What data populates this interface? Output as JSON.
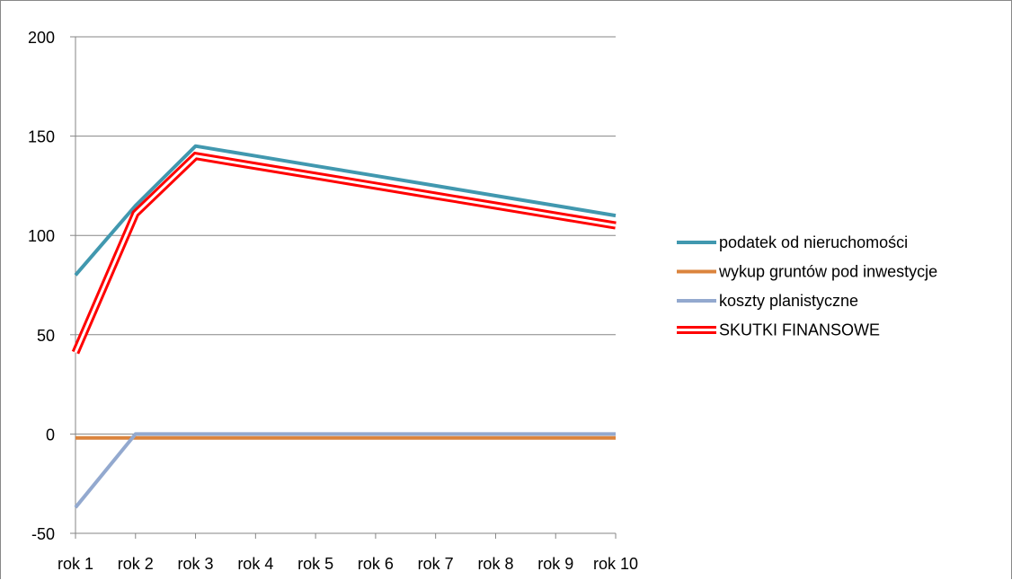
{
  "chart_data": {
    "type": "line",
    "categories": [
      "rok 1",
      "rok 2",
      "rok 3",
      "rok 4",
      "rok 5",
      "rok 6",
      "rok 7",
      "rok 8",
      "rok 9",
      "rok 10"
    ],
    "ylim": [
      -50,
      200
    ],
    "yticks": [
      200,
      150,
      100,
      50,
      0,
      -50
    ],
    "grid": true,
    "legend_position": "right",
    "series": [
      {
        "name": "podatek od nieruchomości",
        "values": [
          80,
          115,
          145,
          140,
          135,
          130,
          125,
          120,
          115,
          110
        ],
        "color": "#4198AF",
        "style": "solid"
      },
      {
        "name": "wykup gruntów pod inwestycje",
        "values": [
          -2,
          -2,
          -2,
          -2,
          -2,
          -2,
          -2,
          -2,
          -2,
          -2
        ],
        "color": "#DB843D",
        "style": "solid"
      },
      {
        "name": "koszty planistyczne",
        "values": [
          -37,
          0,
          0,
          0,
          0,
          0,
          0,
          0,
          0,
          0
        ],
        "color": "#93A9CF",
        "style": "solid"
      },
      {
        "name": "SKUTKI FINANSOWE",
        "values": [
          41,
          111,
          140,
          135,
          130,
          125,
          120,
          115,
          110,
          105
        ],
        "color": "#FF0000",
        "style": "double"
      }
    ]
  }
}
